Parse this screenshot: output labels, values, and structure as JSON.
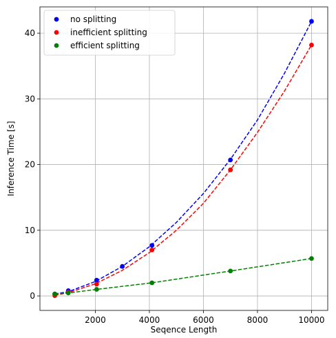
{
  "chart_data": {
    "type": "scatter",
    "title": "",
    "xlabel": "Seqence Length",
    "ylabel": "Inference Time [s]",
    "xlim": [
      -50,
      10600
    ],
    "ylim": [
      -2.2,
      44
    ],
    "xticks": [
      2000,
      4000,
      6000,
      8000,
      10000
    ],
    "yticks": [
      0,
      10,
      20,
      30,
      40
    ],
    "grid": true,
    "legend_position": "top-left",
    "series": [
      {
        "name": "no splitting",
        "color": "#0000ff",
        "x": [
          500,
          1000,
          2048,
          3000,
          4096,
          7000,
          10000
        ],
        "y": [
          0.3,
          0.8,
          2.4,
          4.5,
          7.7,
          20.7,
          41.8
        ],
        "fit_x": [
          500,
          1000,
          2000,
          3000,
          4000,
          5000,
          6000,
          7000,
          8000,
          9000,
          10000
        ],
        "fit_y": [
          0.3,
          0.65,
          2.2,
          4.5,
          7.5,
          11.2,
          15.6,
          20.8,
          26.8,
          33.9,
          41.8
        ]
      },
      {
        "name": "inefficient splitting",
        "color": "#ff0000",
        "x": [
          500,
          1000,
          2048,
          4096,
          7000,
          10000
        ],
        "y": [
          0.05,
          0.55,
          1.8,
          7.0,
          19.2,
          38.2
        ],
        "fit_x": [
          500,
          1000,
          2000,
          3000,
          4000,
          5000,
          6000,
          7000,
          8000,
          9000,
          10000
        ],
        "fit_y": [
          0.1,
          0.5,
          1.85,
          3.9,
          6.6,
          10.0,
          14.1,
          19.2,
          24.9,
          31.2,
          38.2
        ]
      },
      {
        "name": "efficient splitting",
        "color": "#008000",
        "x": [
          500,
          1000,
          2048,
          4096,
          7000,
          10000
        ],
        "y": [
          0.3,
          0.45,
          1.0,
          2.0,
          3.8,
          5.7
        ],
        "fit_x": [
          500,
          1000,
          2048,
          4096,
          7000,
          10000
        ],
        "fit_y": [
          0.3,
          0.45,
          1.0,
          2.0,
          3.8,
          5.7
        ]
      }
    ]
  }
}
